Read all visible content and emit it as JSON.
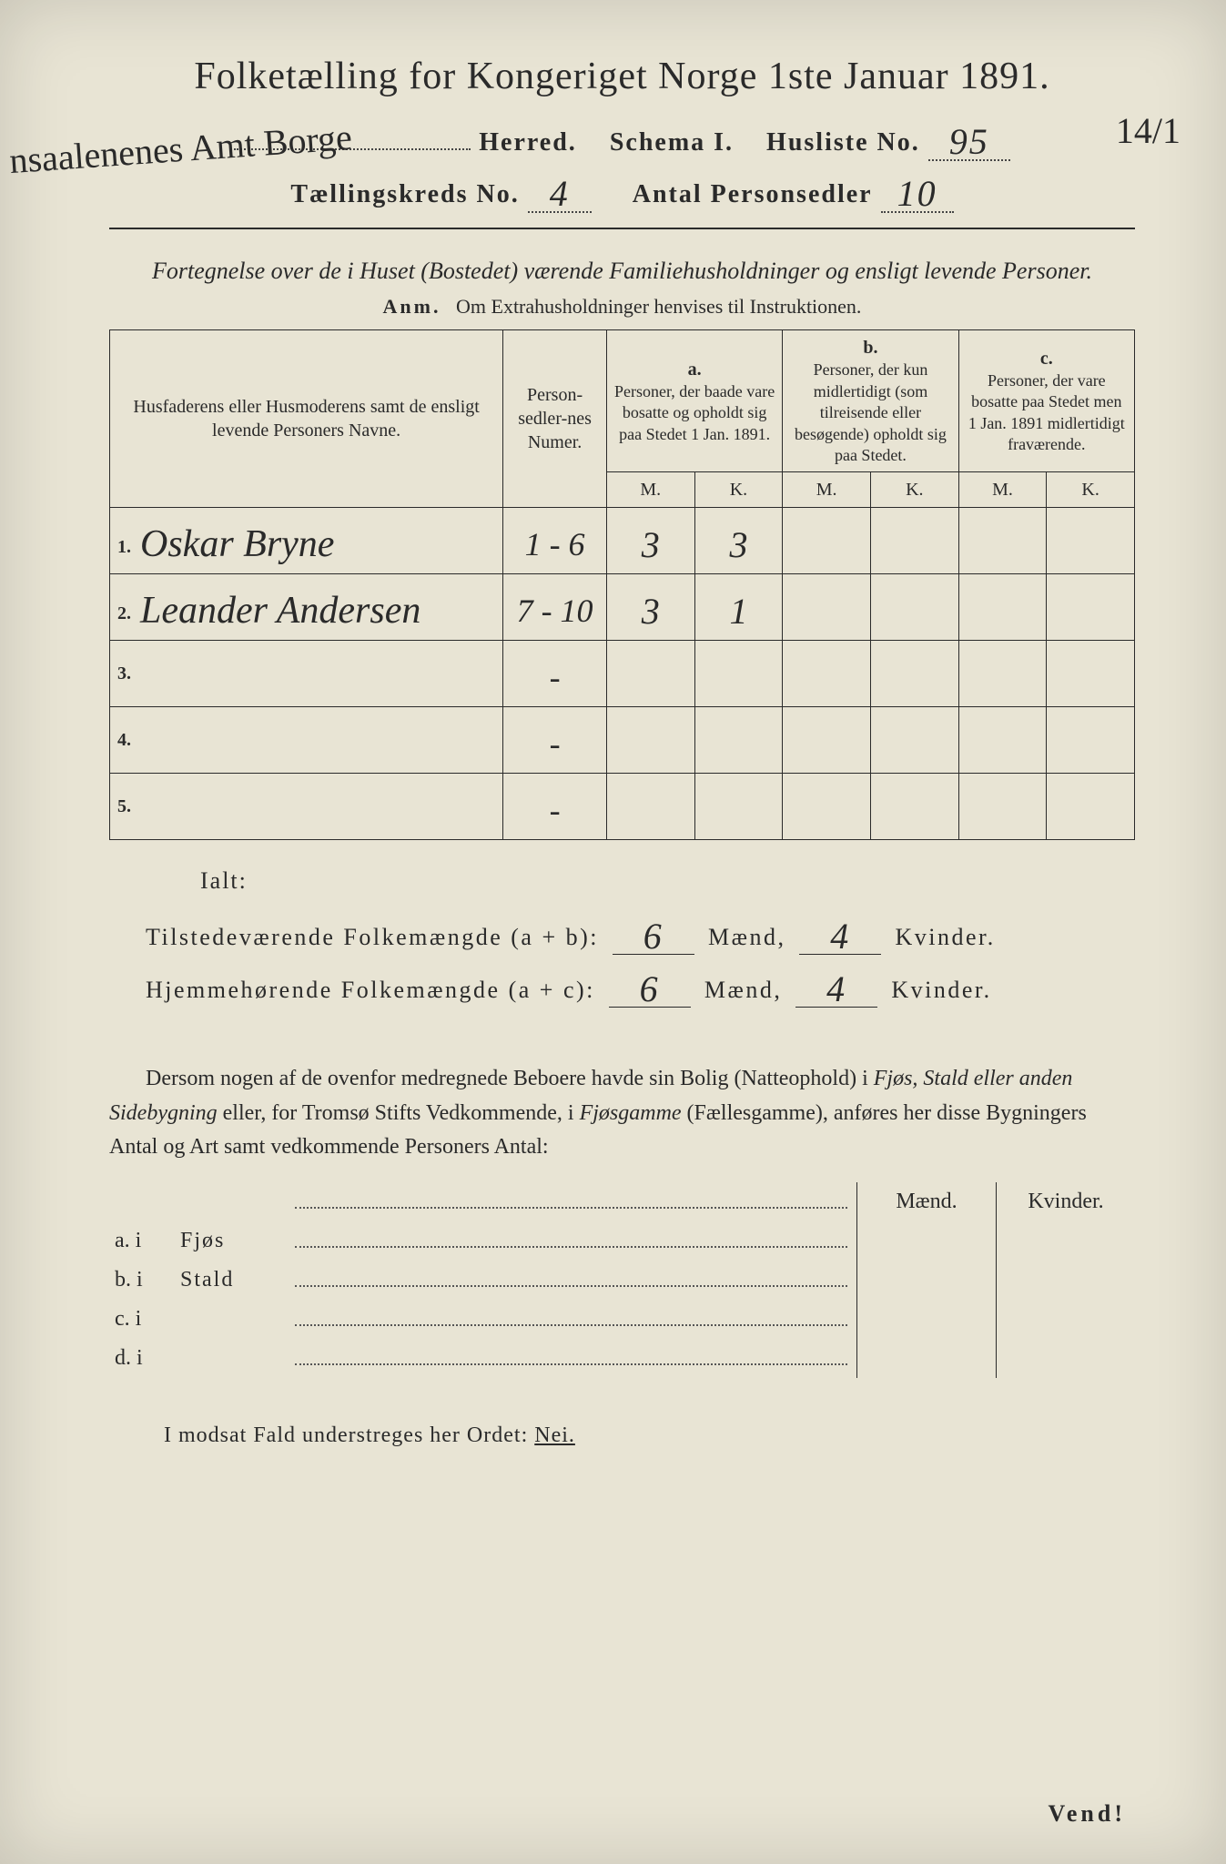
{
  "title": "Folketælling for Kongeriget Norge 1ste Januar 1891.",
  "margin_left": "nsaalenenes Amt Borge",
  "margin_right": "14/1",
  "header": {
    "herred_label": "Herred.",
    "schema_label": "Schema I.",
    "husliste_label": "Husliste No.",
    "husliste_no": "95",
    "kreds_label": "Tællingskreds No.",
    "kreds_no": "4",
    "personsedler_label": "Antal Personsedler",
    "personsedler_no": "10"
  },
  "subtitle": "Fortegnelse over de i Huset (Bostedet) værende Familiehusholdninger og ensligt levende Personer.",
  "anm_label": "Anm.",
  "anm_text": "Om Extrahusholdninger henvises til Instruktionen.",
  "table": {
    "col_names": "Husfaderens eller Husmoderens samt de ensligt levende Personers Navne.",
    "col_num": "Person-sedler-nes Numer.",
    "col_a_label": "a.",
    "col_a": "Personer, der baade vare bosatte og opholdt sig paa Stedet 1 Jan. 1891.",
    "col_b_label": "b.",
    "col_b": "Personer, der kun midlertidigt (som tilreisende eller besøgende) opholdt sig paa Stedet.",
    "col_c_label": "c.",
    "col_c": "Personer, der vare bosatte paa Stedet men 1 Jan. 1891 midlertidigt fraværende.",
    "mk_m": "M.",
    "mk_k": "K.",
    "rows": [
      {
        "n": "1.",
        "name": "Oskar Bryne",
        "num": "1 - 6",
        "a_m": "3",
        "a_k": "3",
        "b_m": "",
        "b_k": "",
        "c_m": "",
        "c_k": ""
      },
      {
        "n": "2.",
        "name": "Leander Andersen",
        "num": "7 - 10",
        "a_m": "3",
        "a_k": "1",
        "b_m": "",
        "b_k": "",
        "c_m": "",
        "c_k": ""
      },
      {
        "n": "3.",
        "name": "",
        "num": "-",
        "a_m": "",
        "a_k": "",
        "b_m": "",
        "b_k": "",
        "c_m": "",
        "c_k": ""
      },
      {
        "n": "4.",
        "name": "",
        "num": "-",
        "a_m": "",
        "a_k": "",
        "b_m": "",
        "b_k": "",
        "c_m": "",
        "c_k": ""
      },
      {
        "n": "5.",
        "name": "",
        "num": "-",
        "a_m": "",
        "a_k": "",
        "b_m": "",
        "b_k": "",
        "c_m": "",
        "c_k": ""
      }
    ]
  },
  "ialt": "Ialt:",
  "summary": {
    "line1_label": "Tilstedeværende Folkemængde (a + b):",
    "line2_label": "Hjemmehørende Folkemængde (a + c):",
    "maend_label": "Mænd,",
    "kvinder_label": "Kvinder.",
    "line1_m": "6",
    "line1_k": "4",
    "line2_m": "6",
    "line2_k": "4"
  },
  "paragraph": {
    "p1": "Dersom nogen af de ovenfor medregnede Beboere havde sin Bolig (Natteophold) i ",
    "p2": "Fjøs, Stald eller anden Sidebygning",
    "p3": " eller, for Tromsø Stifts Vedkommende, i ",
    "p4": "Fjøsgamme",
    "p5": " (Fællesgamme), anføres her disse Bygningers Antal og Art samt vedkommende Personers Antal:"
  },
  "side_table": {
    "maend": "Mænd.",
    "kvinder": "Kvinder.",
    "rows": [
      {
        "lead": "a.  i",
        "kind": "Fjøs"
      },
      {
        "lead": "b.  i",
        "kind": "Stald"
      },
      {
        "lead": "c.  i",
        "kind": ""
      },
      {
        "lead": "d.  i",
        "kind": ""
      }
    ]
  },
  "footer": {
    "text_a": "I modsat Fald understreges her Ordet: ",
    "nei": "Nei."
  },
  "vend": "Vend!",
  "colors": {
    "paper": "#e8e4d4",
    "ink": "#2a2a2a",
    "background": "#1a1410"
  }
}
